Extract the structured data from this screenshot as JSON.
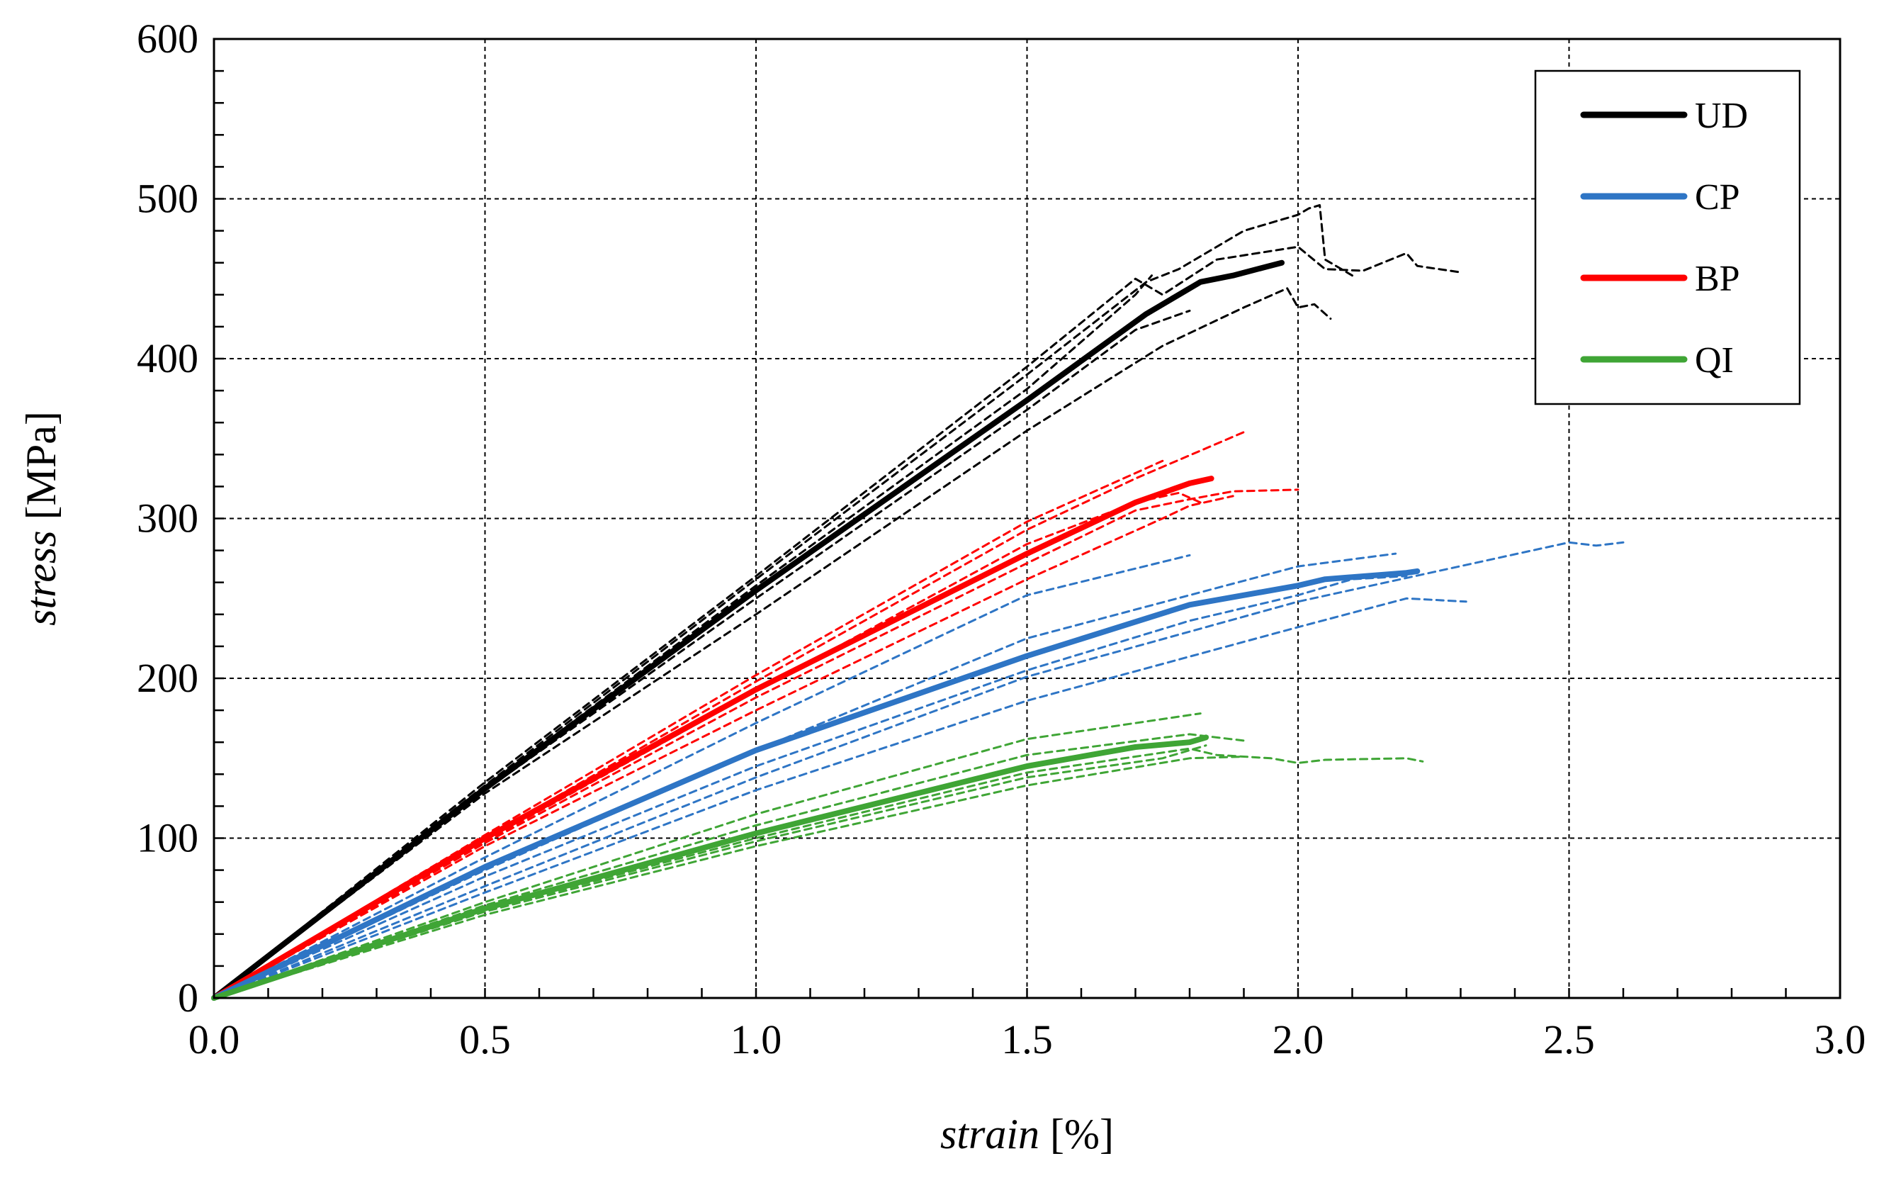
{
  "chart_data": {
    "type": "line",
    "xlabel": {
      "italic": "strain",
      "unit": " [%]"
    },
    "ylabel": {
      "italic": "stress",
      "unit": " [MPa]"
    },
    "xlim": [
      0,
      3.0
    ],
    "ylim": [
      0,
      600
    ],
    "x_ticks": [
      "0.0",
      "0.5",
      "1.0",
      "1.5",
      "2.0",
      "2.5",
      "3.0"
    ],
    "y_ticks": [
      "0",
      "100",
      "200",
      "300",
      "400",
      "500",
      "600"
    ],
    "grid": true,
    "legend_position": "top-right",
    "legend": [
      {
        "label": "UD",
        "color": "#000000"
      },
      {
        "label": "CP",
        "color": "#2E75C5"
      },
      {
        "label": "BP",
        "color": "#FF0000"
      },
      {
        "label": "QI",
        "color": "#3FA535"
      }
    ],
    "series": [
      {
        "name": "UD",
        "color": "#000000",
        "style": "mean",
        "points": [
          [
            0,
            0
          ],
          [
            0.5,
            131
          ],
          [
            1.0,
            255
          ],
          [
            1.5,
            374
          ],
          [
            1.72,
            428
          ],
          [
            1.82,
            448
          ],
          [
            1.88,
            452
          ],
          [
            1.97,
            460
          ]
        ]
      },
      {
        "name": "UD",
        "color": "#000000",
        "style": "specimen",
        "points": [
          [
            0,
            0
          ],
          [
            0.5,
            133
          ],
          [
            1.0,
            262
          ],
          [
            1.5,
            390
          ],
          [
            1.72,
            448
          ],
          [
            1.78,
            456
          ],
          [
            1.9,
            480
          ],
          [
            2.0,
            490
          ],
          [
            2.02,
            494
          ],
          [
            2.04,
            496
          ],
          [
            2.05,
            462
          ],
          [
            2.1,
            452
          ]
        ]
      },
      {
        "name": "UD",
        "color": "#000000",
        "style": "specimen",
        "points": [
          [
            0,
            0
          ],
          [
            0.5,
            135
          ],
          [
            1.0,
            264
          ],
          [
            1.5,
            395
          ],
          [
            1.7,
            450
          ],
          [
            1.75,
            440
          ],
          [
            1.85,
            462
          ],
          [
            2.0,
            470
          ],
          [
            2.05,
            456
          ],
          [
            2.12,
            455
          ],
          [
            2.2,
            466
          ],
          [
            2.22,
            458
          ],
          [
            2.3,
            454
          ]
        ]
      },
      {
        "name": "UD",
        "color": "#000000",
        "style": "specimen",
        "points": [
          [
            0,
            0
          ],
          [
            0.5,
            128
          ],
          [
            1.0,
            240
          ],
          [
            1.5,
            355
          ],
          [
            1.75,
            408
          ],
          [
            1.9,
            432
          ],
          [
            1.98,
            444
          ],
          [
            2.0,
            432
          ],
          [
            2.03,
            434
          ],
          [
            2.06,
            425
          ]
        ]
      },
      {
        "name": "UD",
        "color": "#000000",
        "style": "specimen",
        "points": [
          [
            0,
            0
          ],
          [
            0.5,
            130
          ],
          [
            1.0,
            250
          ],
          [
            1.5,
            368
          ],
          [
            1.7,
            418
          ],
          [
            1.8,
            430
          ]
        ]
      },
      {
        "name": "UD",
        "color": "#000000",
        "style": "specimen",
        "points": [
          [
            0,
            0
          ],
          [
            0.5,
            132
          ],
          [
            1.0,
            258
          ],
          [
            1.5,
            381
          ],
          [
            1.7,
            440
          ],
          [
            1.73,
            452
          ]
        ]
      },
      {
        "name": "BP",
        "color": "#FF0000",
        "style": "mean",
        "points": [
          [
            0,
            0
          ],
          [
            0.5,
            100
          ],
          [
            1.0,
            193
          ],
          [
            1.5,
            278
          ],
          [
            1.7,
            310
          ],
          [
            1.8,
            322
          ],
          [
            1.84,
            325
          ]
        ]
      },
      {
        "name": "BP",
        "color": "#FF0000",
        "style": "specimen",
        "points": [
          [
            0,
            0
          ],
          [
            0.5,
            102
          ],
          [
            1.0,
            202
          ],
          [
            1.5,
            298
          ],
          [
            1.75,
            336
          ]
        ]
      },
      {
        "name": "BP",
        "color": "#FF0000",
        "style": "specimen",
        "points": [
          [
            0,
            0
          ],
          [
            0.5,
            100
          ],
          [
            1.0,
            198
          ],
          [
            1.5,
            293
          ],
          [
            1.7,
            325
          ],
          [
            1.9,
            354
          ]
        ]
      },
      {
        "name": "BP",
        "color": "#FF0000",
        "style": "specimen",
        "points": [
          [
            0,
            0
          ],
          [
            0.5,
            97
          ],
          [
            1.0,
            188
          ],
          [
            1.5,
            272
          ],
          [
            1.7,
            305
          ],
          [
            1.8,
            312
          ],
          [
            1.88,
            317
          ],
          [
            2.0,
            318
          ]
        ]
      },
      {
        "name": "BP",
        "color": "#FF0000",
        "style": "specimen",
        "points": [
          [
            0,
            0
          ],
          [
            0.5,
            95
          ],
          [
            1.0,
            180
          ],
          [
            1.5,
            262
          ],
          [
            1.75,
            300
          ],
          [
            1.8,
            308
          ],
          [
            1.88,
            314
          ]
        ]
      },
      {
        "name": "BP",
        "color": "#FF0000",
        "style": "specimen",
        "points": [
          [
            0,
            0
          ],
          [
            0.5,
            98
          ],
          [
            1.0,
            192
          ],
          [
            1.5,
            284
          ],
          [
            1.7,
            310
          ],
          [
            1.78,
            316
          ],
          [
            1.82,
            310
          ]
        ]
      },
      {
        "name": "CP",
        "color": "#2E75C5",
        "style": "mean",
        "points": [
          [
            0,
            0
          ],
          [
            0.5,
            82
          ],
          [
            1.0,
            155
          ],
          [
            1.5,
            214
          ],
          [
            1.8,
            246
          ],
          [
            2.0,
            258
          ],
          [
            2.05,
            262
          ],
          [
            2.2,
            266
          ],
          [
            2.22,
            267
          ]
        ]
      },
      {
        "name": "CP",
        "color": "#2E75C5",
        "style": "specimen",
        "points": [
          [
            0,
            0
          ],
          [
            0.5,
            88
          ],
          [
            1.0,
            172
          ],
          [
            1.5,
            252
          ],
          [
            1.8,
            277
          ]
        ]
      },
      {
        "name": "CP",
        "color": "#2E75C5",
        "style": "specimen",
        "points": [
          [
            0,
            0
          ],
          [
            0.5,
            80
          ],
          [
            1.0,
            155
          ],
          [
            1.5,
            225
          ],
          [
            2.0,
            270
          ],
          [
            2.18,
            278
          ]
        ]
      },
      {
        "name": "CP",
        "color": "#2E75C5",
        "style": "specimen",
        "points": [
          [
            0,
            0
          ],
          [
            0.5,
            70
          ],
          [
            1.0,
            138
          ],
          [
            1.5,
            201
          ],
          [
            2.0,
            248
          ],
          [
            2.5,
            285
          ],
          [
            2.55,
            283
          ],
          [
            2.6,
            285
          ]
        ]
      },
      {
        "name": "CP",
        "color": "#2E75C5",
        "style": "specimen",
        "points": [
          [
            0,
            0
          ],
          [
            0.5,
            66
          ],
          [
            1.0,
            130
          ],
          [
            1.5,
            186
          ],
          [
            2.0,
            232
          ],
          [
            2.2,
            250
          ],
          [
            2.31,
            248
          ]
        ]
      },
      {
        "name": "CP",
        "color": "#2E75C5",
        "style": "specimen",
        "points": [
          [
            0,
            0
          ],
          [
            0.5,
            76
          ],
          [
            1.0,
            145
          ],
          [
            1.5,
            205
          ],
          [
            1.8,
            236
          ],
          [
            2.0,
            252
          ],
          [
            2.1,
            262
          ],
          [
            2.2,
            264
          ]
        ]
      },
      {
        "name": "QI",
        "color": "#3FA535",
        "style": "mean",
        "points": [
          [
            0,
            0
          ],
          [
            0.5,
            56
          ],
          [
            1.0,
            103
          ],
          [
            1.5,
            145
          ],
          [
            1.7,
            157
          ],
          [
            1.8,
            160
          ],
          [
            1.83,
            163
          ]
        ]
      },
      {
        "name": "QI",
        "color": "#3FA535",
        "style": "specimen",
        "points": [
          [
            0,
            0
          ],
          [
            0.5,
            60
          ],
          [
            1.0,
            115
          ],
          [
            1.5,
            162
          ],
          [
            1.82,
            178
          ]
        ]
      },
      {
        "name": "QI",
        "color": "#3FA535",
        "style": "specimen",
        "points": [
          [
            0,
            0
          ],
          [
            0.5,
            58
          ],
          [
            1.0,
            108
          ],
          [
            1.5,
            152
          ],
          [
            1.8,
            165
          ],
          [
            1.9,
            161
          ]
        ]
      },
      {
        "name": "QI",
        "color": "#3FA535",
        "style": "specimen",
        "points": [
          [
            0,
            0
          ],
          [
            0.5,
            55
          ],
          [
            1.0,
            100
          ],
          [
            1.5,
            141
          ],
          [
            1.8,
            156
          ],
          [
            1.85,
            152
          ],
          [
            1.95,
            150
          ],
          [
            2.0,
            147
          ],
          [
            2.05,
            149
          ],
          [
            2.2,
            150
          ],
          [
            2.23,
            148
          ]
        ]
      },
      {
        "name": "QI",
        "color": "#3FA535",
        "style": "specimen",
        "points": [
          [
            0,
            0
          ],
          [
            0.5,
            52
          ],
          [
            1.0,
            95
          ],
          [
            1.5,
            133
          ],
          [
            1.8,
            150
          ],
          [
            1.9,
            151
          ]
        ]
      },
      {
        "name": "QI",
        "color": "#3FA535",
        "style": "specimen",
        "points": [
          [
            0,
            0
          ],
          [
            0.5,
            54
          ],
          [
            1.0,
            98
          ],
          [
            1.5,
            138
          ],
          [
            1.75,
            150
          ],
          [
            1.83,
            158
          ]
        ]
      }
    ]
  }
}
